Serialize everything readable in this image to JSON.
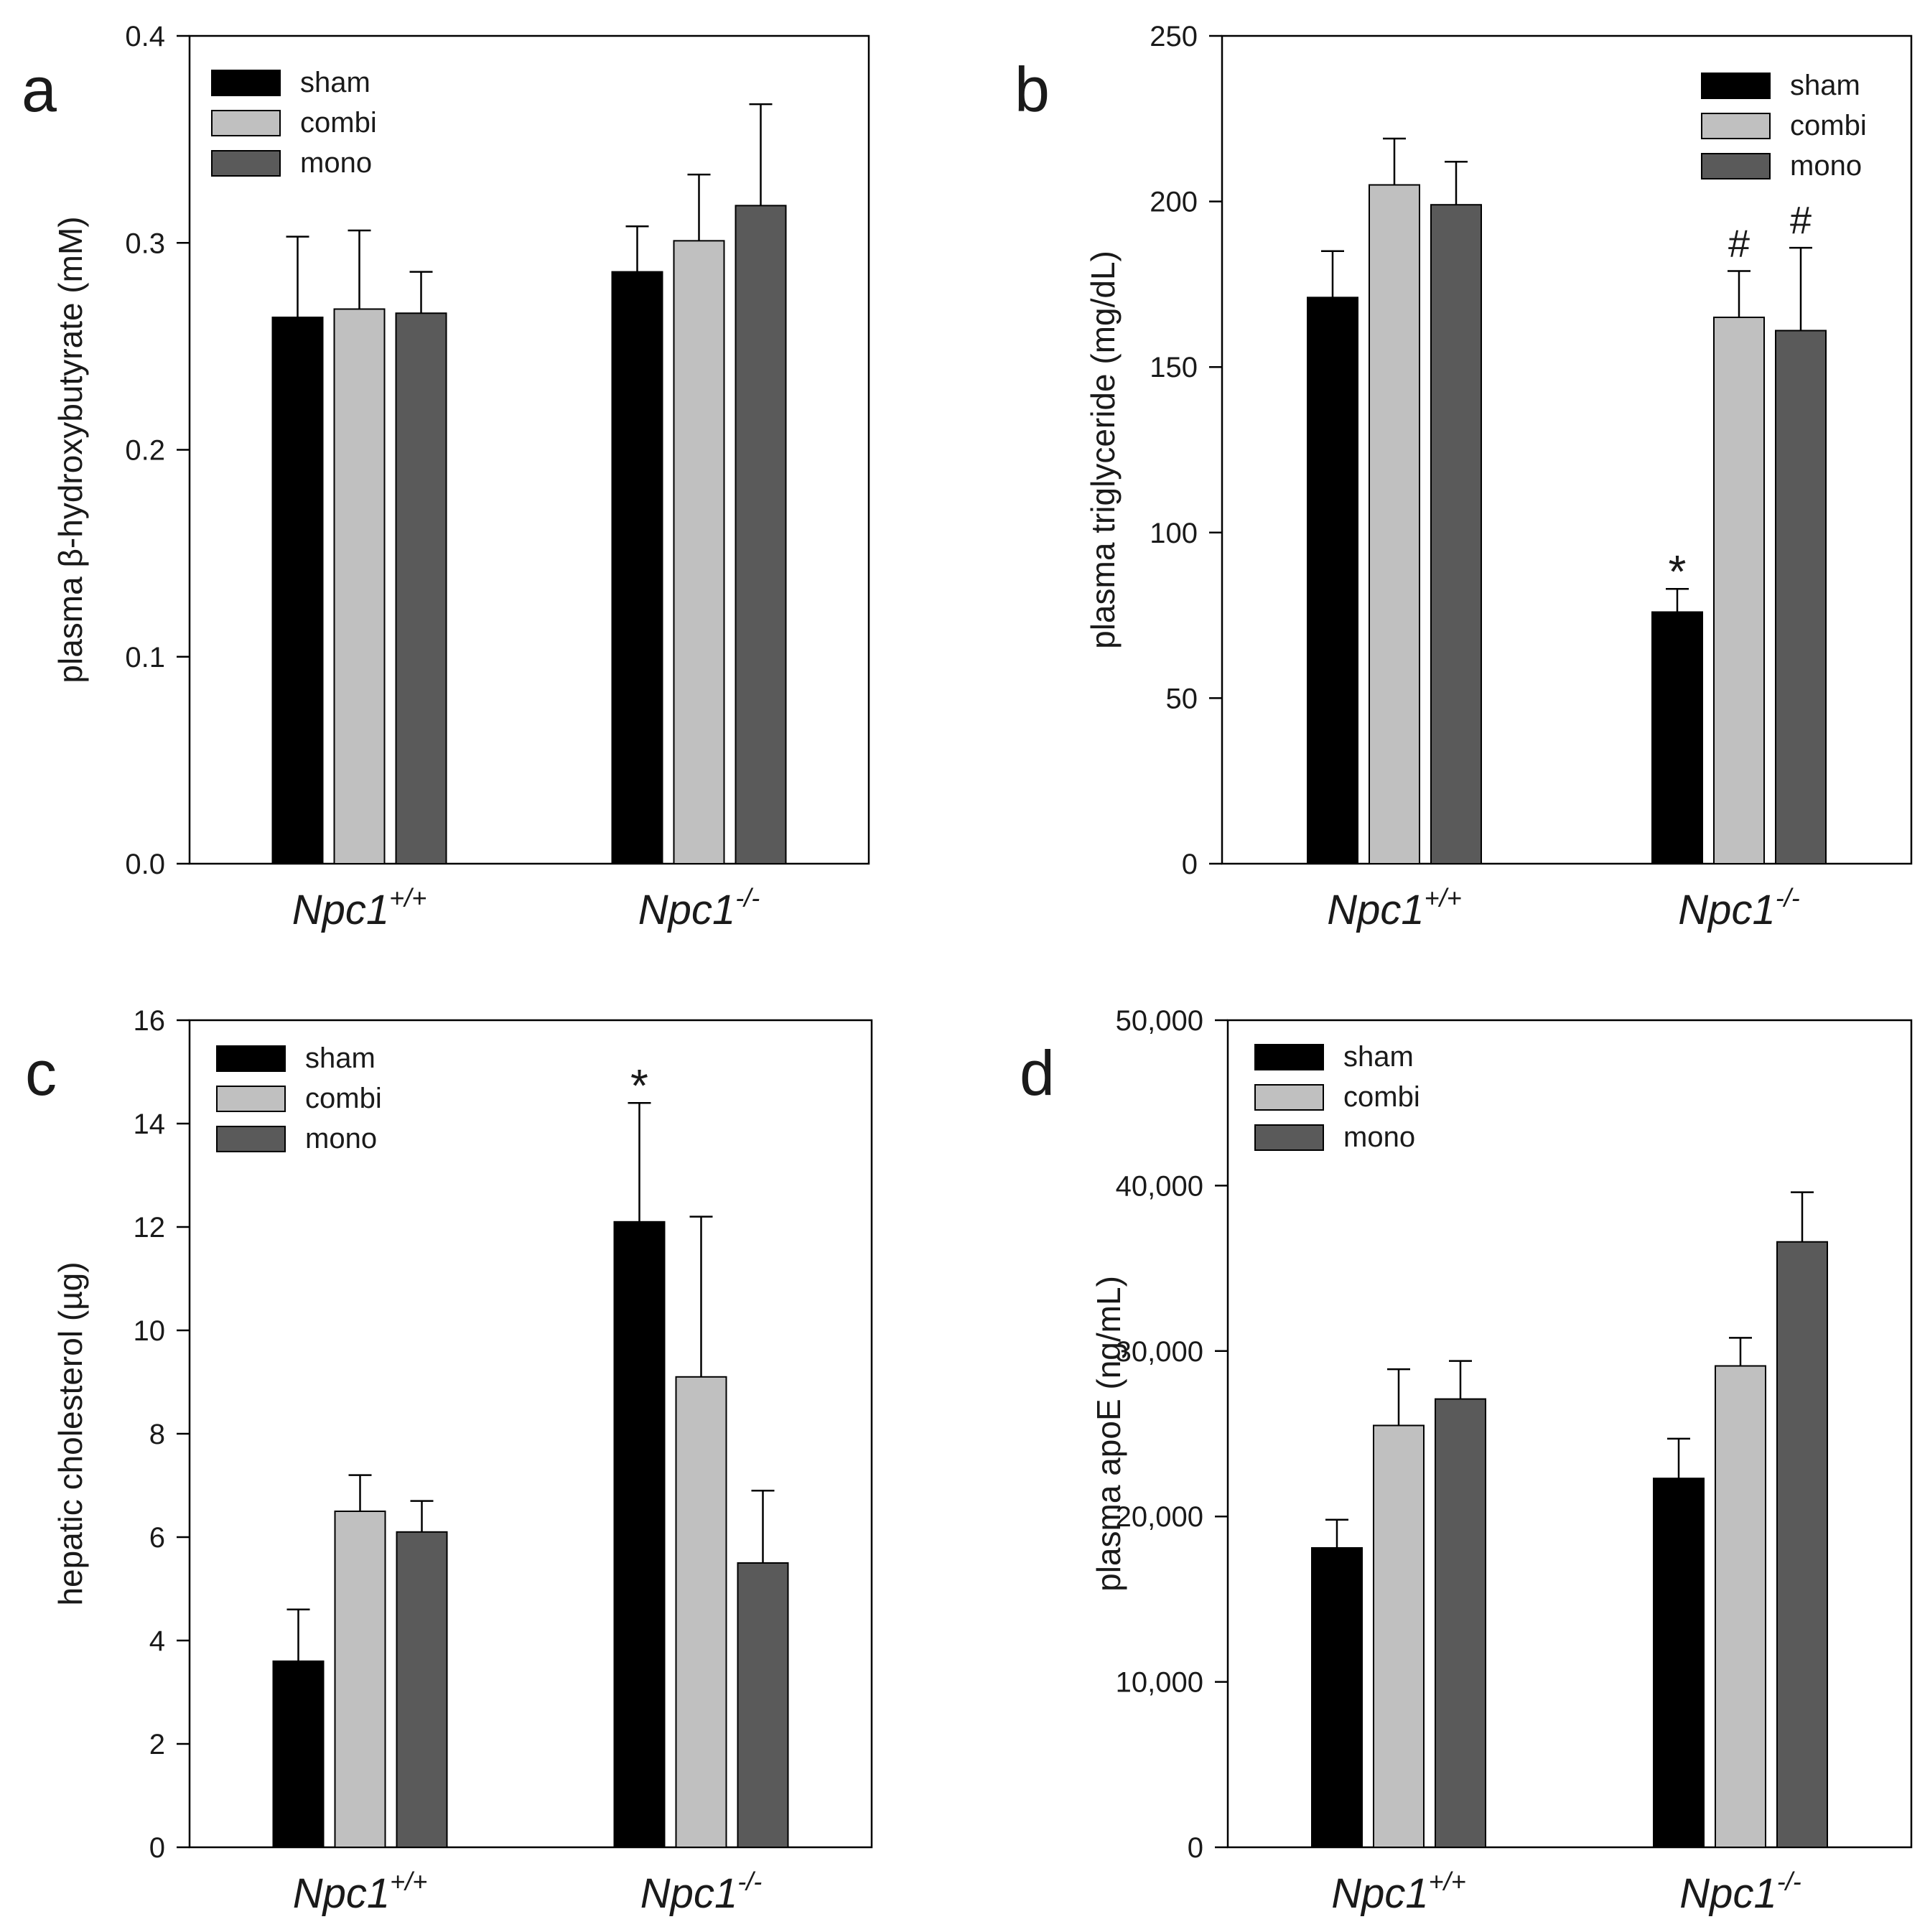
{
  "figure": {
    "panel_labels": [
      "a",
      "b",
      "c",
      "d"
    ]
  },
  "chart_data": [
    {
      "type": "bar",
      "panel": "a",
      "title": "",
      "xlabel": "",
      "ylabel": "plasma β-hydroxybutyrate (mM)",
      "categories": [
        "Npc1+/+",
        "Npc1-/-"
      ],
      "category_labels": [
        {
          "base": "Npc1",
          "sup": "+/+"
        },
        {
          "base": "Npc1",
          "sup": "-/-"
        }
      ],
      "ylim": [
        0,
        0.4
      ],
      "yticks": [
        0.0,
        0.1,
        0.2,
        0.3,
        0.4
      ],
      "ytick_labels": [
        "0.0",
        "0.1",
        "0.2",
        "0.3",
        "0.4"
      ],
      "legend_position": "top-left",
      "grid": false,
      "series": [
        {
          "name": "sham",
          "color": "#000000",
          "values": [
            0.264,
            0.286
          ],
          "errors": [
            0.039,
            0.022
          ]
        },
        {
          "name": "combi",
          "color": "#c0c0c0",
          "values": [
            0.268,
            0.301
          ],
          "errors": [
            0.038,
            0.032
          ]
        },
        {
          "name": "mono",
          "color": "#5a5a5a",
          "values": [
            0.266,
            0.318
          ],
          "errors": [
            0.02,
            0.049
          ]
        }
      ],
      "annotations": []
    },
    {
      "type": "bar",
      "panel": "b",
      "title": "",
      "xlabel": "",
      "ylabel": "plasma triglyceride (mg/dL)",
      "categories": [
        "Npc1+/+",
        "Npc1-/-"
      ],
      "category_labels": [
        {
          "base": "Npc1",
          "sup": "+/+"
        },
        {
          "base": "Npc1",
          "sup": "-/-"
        }
      ],
      "ylim": [
        0,
        250
      ],
      "yticks": [
        0,
        50,
        100,
        150,
        200,
        250
      ],
      "ytick_labels": [
        "0",
        "50",
        "100",
        "150",
        "200",
        "250"
      ],
      "legend_position": "top-right",
      "grid": false,
      "series": [
        {
          "name": "sham",
          "color": "#000000",
          "values": [
            171,
            76
          ],
          "errors": [
            14,
            7
          ]
        },
        {
          "name": "combi",
          "color": "#c0c0c0",
          "values": [
            205,
            165
          ],
          "errors": [
            14,
            14
          ]
        },
        {
          "name": "mono",
          "color": "#5a5a5a",
          "values": [
            199,
            161
          ],
          "errors": [
            13,
            25
          ]
        }
      ],
      "annotations": [
        {
          "text": "*",
          "series": 0,
          "category": 1
        },
        {
          "text": "#",
          "series": 1,
          "category": 1
        },
        {
          "text": "#",
          "series": 2,
          "category": 1
        }
      ]
    },
    {
      "type": "bar",
      "panel": "c",
      "title": "",
      "xlabel": "",
      "ylabel": "hepatic cholesterol (µg)",
      "categories": [
        "Npc1+/+",
        "Npc1-/-"
      ],
      "category_labels": [
        {
          "base": "Npc1",
          "sup": "+/+"
        },
        {
          "base": "Npc1",
          "sup": "-/-"
        }
      ],
      "ylim": [
        0,
        16
      ],
      "yticks": [
        0,
        2,
        4,
        6,
        8,
        10,
        12,
        14,
        16
      ],
      "ytick_labels": [
        "0",
        "2",
        "4",
        "6",
        "8",
        "10",
        "12",
        "14",
        "16"
      ],
      "legend_position": "top-left",
      "grid": false,
      "series": [
        {
          "name": "sham",
          "color": "#000000",
          "values": [
            3.6,
            12.1
          ],
          "errors": [
            1.0,
            2.3
          ]
        },
        {
          "name": "combi",
          "color": "#c0c0c0",
          "values": [
            6.5,
            9.1
          ],
          "errors": [
            0.7,
            3.1
          ]
        },
        {
          "name": "mono",
          "color": "#5a5a5a",
          "values": [
            6.1,
            5.5
          ],
          "errors": [
            0.6,
            1.4
          ]
        }
      ],
      "annotations": [
        {
          "text": "*",
          "series": 0,
          "category": 1
        }
      ]
    },
    {
      "type": "bar",
      "panel": "d",
      "title": "",
      "xlabel": "",
      "ylabel": "plasma apoE (ng/mL)",
      "categories": [
        "Npc1+/+",
        "Npc1-/-"
      ],
      "category_labels": [
        {
          "base": "Npc1",
          "sup": "+/+"
        },
        {
          "base": "Npc1",
          "sup": "-/-"
        }
      ],
      "ylim": [
        0,
        50000
      ],
      "yticks": [
        0,
        10000,
        20000,
        30000,
        40000,
        50000
      ],
      "ytick_labels": [
        "0",
        "10,000",
        "20,000",
        "30,000",
        "40,000",
        "50,000"
      ],
      "legend_position": "top-left",
      "grid": false,
      "series": [
        {
          "name": "sham",
          "color": "#000000",
          "values": [
            18100,
            22300
          ],
          "errors": [
            1700,
            2400
          ]
        },
        {
          "name": "combi",
          "color": "#c0c0c0",
          "values": [
            25500,
            29100
          ],
          "errors": [
            3400,
            1700
          ]
        },
        {
          "name": "mono",
          "color": "#5a5a5a",
          "values": [
            27100,
            36600
          ],
          "errors": [
            2300,
            3000
          ]
        }
      ],
      "annotations": []
    }
  ]
}
